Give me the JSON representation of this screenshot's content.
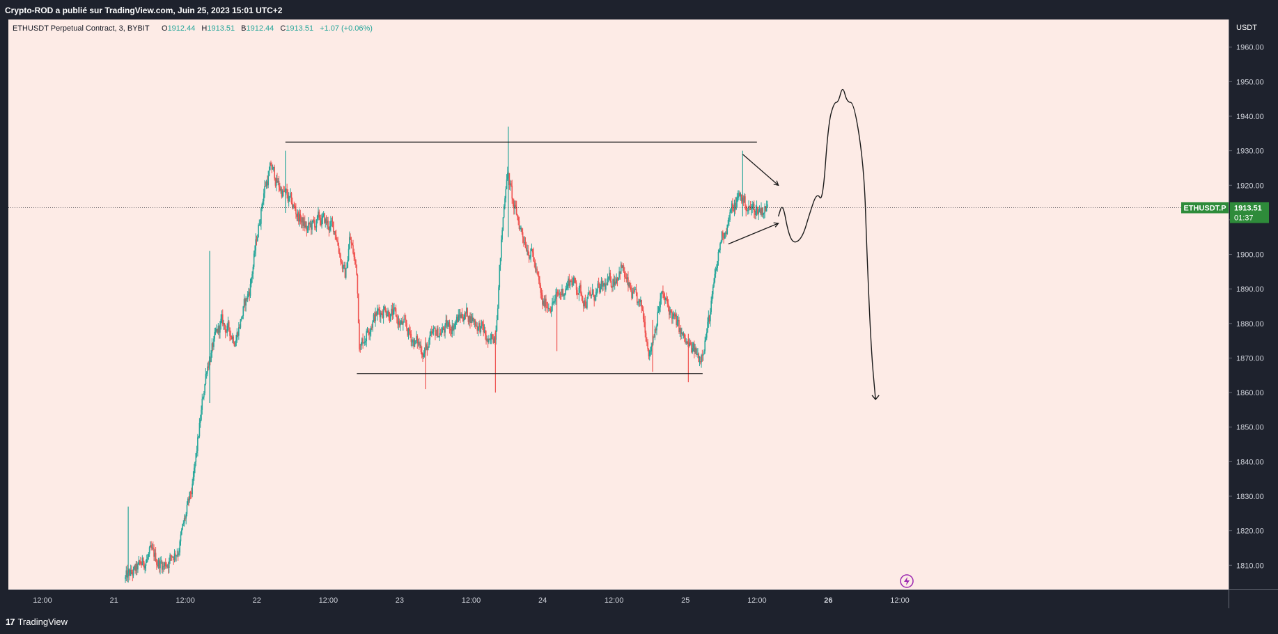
{
  "header": {
    "publish_line": "Crypto-ROD a publié sur TradingView.com, Juin 25, 2023 15:01 UTC+2"
  },
  "footer": {
    "brand": "TradingView",
    "logo_icon": "tradingview-logo-icon"
  },
  "legend": {
    "symbol": "ETHUSDT Perpetual Contract, 3, BYBIT",
    "open_label": "O",
    "open": "1912.44",
    "high_label": "H",
    "high": "1913.51",
    "low_label": "B",
    "low": "1912.44",
    "close_label": "C",
    "close": "1913.51",
    "change": "+1.07 (+0.06%)"
  },
  "colors": {
    "background": "#fdebe6",
    "up": "#26a69a",
    "down": "#ef5350",
    "tag": "#2e8b3a",
    "frame": "#1e222d",
    "drawing": "#1a1a1a",
    "lightning_icon": "#9c27b0"
  },
  "chart_data": {
    "type": "candlestick",
    "currency": "USDT",
    "ylim": [
      1803,
      1968
    ],
    "yticks": [
      1810,
      1820,
      1830,
      1840,
      1850,
      1860,
      1870,
      1880,
      1890,
      1900,
      1910,
      1920,
      1930,
      1940,
      1950,
      1960
    ],
    "ytick_labels": [
      "1810.00",
      "1820.00",
      "1830.00",
      "1840.00",
      "1850.00",
      "1860.00",
      "1870.00",
      "1880.00",
      "1890.00",
      "1900.00",
      "1910.00",
      "1920.00",
      "1930.00",
      "1940.00",
      "1950.00",
      "1960.00"
    ],
    "x_ticks": [
      {
        "label": "12:00",
        "day": 20.5
      },
      {
        "label": "21",
        "day": 21
      },
      {
        "label": "12:00",
        "day": 21.5
      },
      {
        "label": "22",
        "day": 22
      },
      {
        "label": "12:00",
        "day": 22.5
      },
      {
        "label": "23",
        "day": 23
      },
      {
        "label": "12:00",
        "day": 23.5
      },
      {
        "label": "24",
        "day": 24
      },
      {
        "label": "12:00",
        "day": 24.5
      },
      {
        "label": "25",
        "day": 25
      },
      {
        "label": "12:00",
        "day": 25.5
      },
      {
        "label": "26",
        "day": 26
      },
      {
        "label": "12:00",
        "day": 26.5
      }
    ],
    "bold_x_labels": [
      "26"
    ],
    "price_path": [
      [
        21.08,
        1806
      ],
      [
        21.15,
        1808
      ],
      [
        21.25,
        1813
      ],
      [
        21.35,
        1810
      ],
      [
        21.45,
        1815
      ],
      [
        21.55,
        1832
      ],
      [
        21.65,
        1868
      ],
      [
        21.75,
        1880
      ],
      [
        21.85,
        1876
      ],
      [
        21.95,
        1890
      ],
      [
        22.05,
        1919
      ],
      [
        22.1,
        1925
      ],
      [
        22.15,
        1920
      ],
      [
        22.2,
        1917
      ],
      [
        22.28,
        1912
      ],
      [
        22.35,
        1907
      ],
      [
        22.45,
        1910
      ],
      [
        22.55,
        1907
      ],
      [
        22.62,
        1893
      ],
      [
        22.65,
        1905
      ],
      [
        22.7,
        1895
      ],
      [
        22.72,
        1873
      ],
      [
        22.8,
        1881
      ],
      [
        22.9,
        1885
      ],
      [
        23.0,
        1880
      ],
      [
        23.05,
        1878
      ],
      [
        23.1,
        1875
      ],
      [
        23.18,
        1872
      ],
      [
        23.25,
        1877
      ],
      [
        23.35,
        1879
      ],
      [
        23.45,
        1883
      ],
      [
        23.5,
        1882
      ],
      [
        23.58,
        1878
      ],
      [
        23.63,
        1873
      ],
      [
        23.67,
        1878
      ],
      [
        23.7,
        1897
      ],
      [
        23.75,
        1925
      ],
      [
        23.8,
        1913
      ],
      [
        23.87,
        1905
      ],
      [
        23.93,
        1900
      ],
      [
        24.0,
        1885
      ],
      [
        24.1,
        1887
      ],
      [
        24.2,
        1893
      ],
      [
        24.3,
        1887
      ],
      [
        24.4,
        1889
      ],
      [
        24.5,
        1893
      ],
      [
        24.55,
        1897
      ],
      [
        24.6,
        1890
      ],
      [
        24.7,
        1883
      ],
      [
        24.75,
        1872
      ],
      [
        24.83,
        1888
      ],
      [
        24.9,
        1883
      ],
      [
        25.0,
        1874
      ],
      [
        25.1,
        1870
      ],
      [
        25.17,
        1882
      ],
      [
        25.25,
        1905
      ],
      [
        25.32,
        1912
      ],
      [
        25.38,
        1917
      ],
      [
        25.45,
        1913
      ],
      [
        25.52,
        1913
      ],
      [
        25.58,
        1913.51
      ]
    ],
    "spikes": [
      {
        "day": 21.1,
        "high": 1827,
        "low": 1805
      },
      {
        "day": 21.67,
        "high": 1901,
        "low": 1857
      },
      {
        "day": 22.2,
        "high": 1930,
        "low": 1912
      },
      {
        "day": 23.18,
        "high": 1876,
        "low": 1861
      },
      {
        "day": 23.67,
        "high": 1878,
        "low": 1860
      },
      {
        "day": 23.76,
        "high": 1937,
        "low": 1905
      },
      {
        "day": 24.1,
        "high": 1889,
        "low": 1872
      },
      {
        "day": 24.77,
        "high": 1881,
        "low": 1866
      },
      {
        "day": 25.02,
        "high": 1877,
        "low": 1863
      },
      {
        "day": 25.4,
        "high": 1930,
        "low": 1911
      }
    ],
    "annotations": {
      "resistance": {
        "from": 22.2,
        "to": 25.5,
        "value": 1932.5
      },
      "support": {
        "from": 22.7,
        "to": 25.12,
        "value": 1865.5
      },
      "triangle_upper": [
        [
          25.4,
          1929
        ],
        [
          25.65,
          1920
        ]
      ],
      "triangle_lower": [
        [
          25.3,
          1903
        ],
        [
          25.65,
          1909
        ]
      ],
      "projection": [
        [
          25.65,
          1911
        ],
        [
          25.68,
          1915
        ],
        [
          25.72,
          1906
        ],
        [
          25.76,
          1903
        ],
        [
          25.82,
          1905
        ],
        [
          25.87,
          1912
        ],
        [
          25.92,
          1918
        ],
        [
          25.96,
          1915
        ],
        [
          26.0,
          1938
        ],
        [
          26.04,
          1944
        ],
        [
          26.07,
          1944
        ],
        [
          26.1,
          1949
        ],
        [
          26.13,
          1944
        ],
        [
          26.18,
          1944
        ],
        [
          26.25,
          1925
        ],
        [
          26.27,
          1900
        ],
        [
          26.3,
          1872
        ],
        [
          26.33,
          1858
        ]
      ]
    },
    "last_price": {
      "symbol": "ETHUSDT.P",
      "value": 1913.51,
      "label": "1913.51",
      "countdown": "01:37"
    }
  }
}
